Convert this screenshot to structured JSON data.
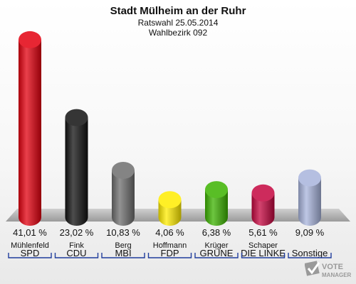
{
  "chart_data": {
    "type": "bar",
    "title": "Stadt Mülheim an der Ruhr",
    "subtitle_lines": [
      "Ratswahl 25.05.2014",
      "Wahlbezirk 092"
    ],
    "unit": "%",
    "ylim": [
      0,
      45
    ],
    "grid": false,
    "categories": [
      "SPD",
      "CDU",
      "MBI",
      "FDP",
      "GRÜNE",
      "DIE LINKE",
      "Sonstige"
    ],
    "candidates": [
      "Mühlenfeld",
      "Fink",
      "Berg",
      "Hoffmann",
      "Krüger",
      "Schaper",
      ""
    ],
    "values": [
      41.01,
      23.02,
      10.83,
      4.06,
      6.38,
      5.61,
      9.09
    ],
    "value_labels": [
      "41,01 %",
      "23,02 %",
      "10,83 %",
      "4,06 %",
      "6,38 %",
      "5,61 %",
      "9,09 %"
    ],
    "colors": [
      "#e3000f",
      "#111111",
      "#6e6e6e",
      "#ffec00",
      "#3cb300",
      "#c4063f",
      "#a8b4dc"
    ]
  },
  "watermark": {
    "line1": "VOTE",
    "line2": "MANAGER",
    "icon": "checkmark-box-icon"
  }
}
